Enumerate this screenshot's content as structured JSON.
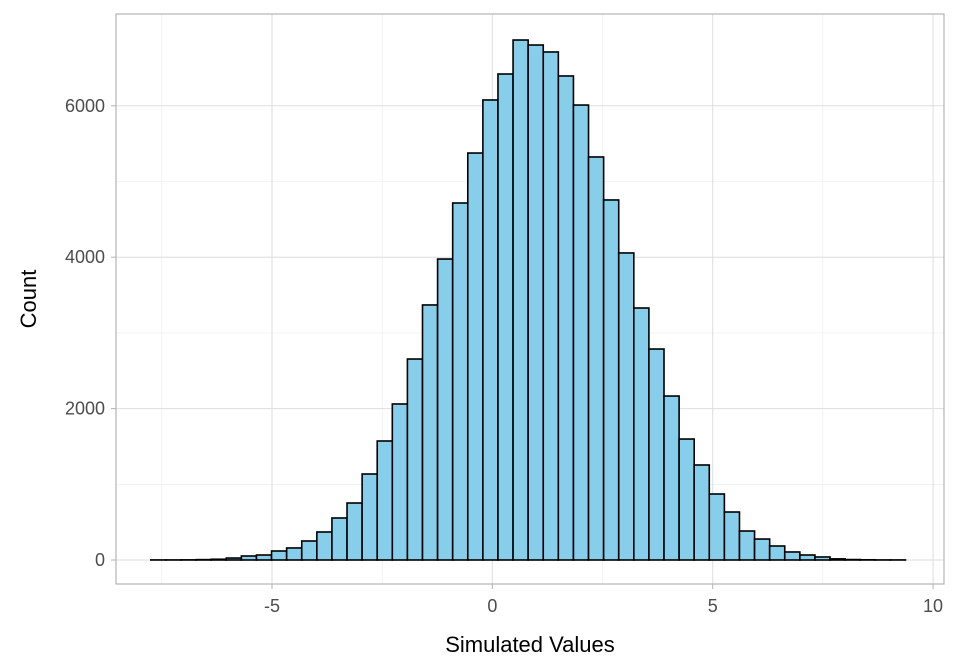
{
  "chart_data": {
    "type": "bar",
    "title": "",
    "xlabel": "Simulated Values",
    "ylabel": "Count",
    "bin_start": -7.75,
    "bin_width": 0.3425,
    "counts": [
      1,
      1,
      2,
      5,
      10,
      26,
      53,
      66,
      119,
      159,
      251,
      370,
      555,
      753,
      1136,
      1572,
      2061,
      2655,
      3369,
      3976,
      4716,
      5376,
      6077,
      6420,
      6869,
      6803,
      6711,
      6394,
      6010,
      5324,
      4756,
      4056,
      3329,
      2787,
      2166,
      1598,
      1255,
      872,
      634,
      383,
      277,
      185,
      106,
      66,
      40,
      15,
      6,
      3,
      1,
      1
    ],
    "xlim": [
      -8.2,
      9.8
    ],
    "ylim": [
      -330,
      7200
    ],
    "xticks": [
      -5,
      0,
      5,
      10
    ],
    "xtick_labels": [
      "-5",
      "0",
      "5",
      "10"
    ],
    "yticks": [
      0,
      2000,
      4000,
      6000
    ],
    "ytick_labels": [
      "0",
      "2000",
      "4000",
      "6000"
    ],
    "grid": true,
    "fill_color": "#87CEEB",
    "edge_color": "#000000"
  }
}
